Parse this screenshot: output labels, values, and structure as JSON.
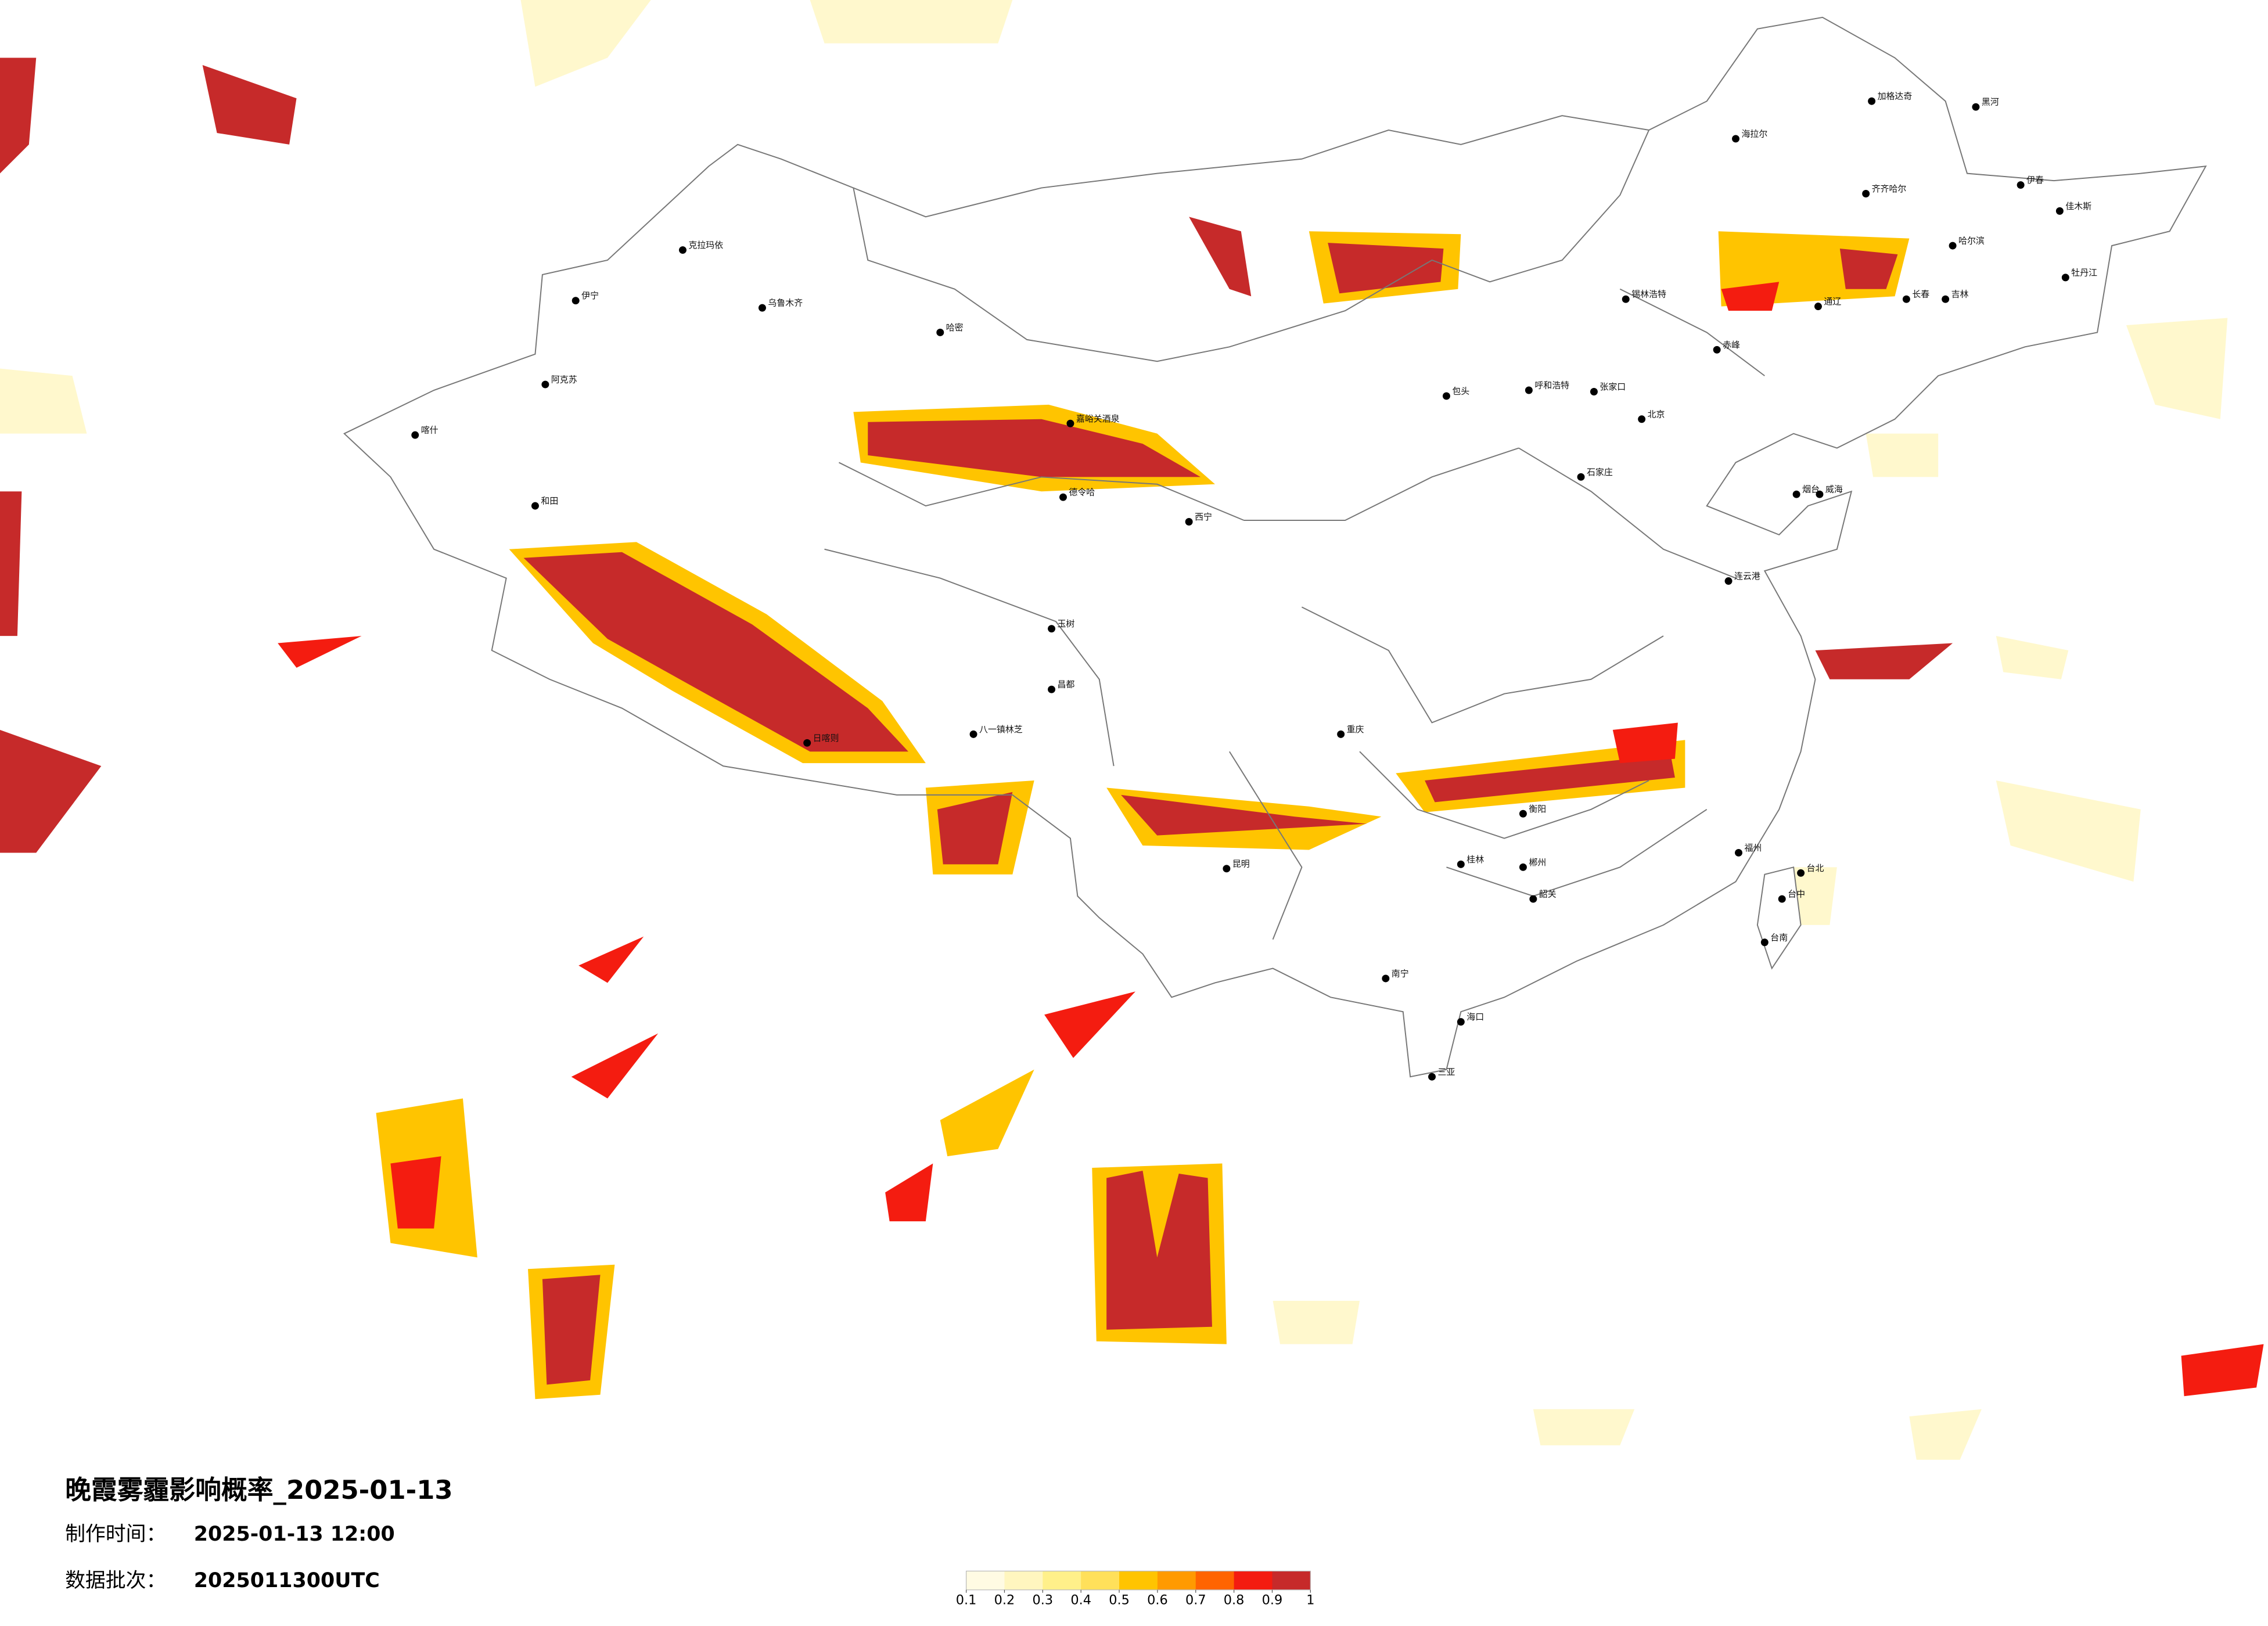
{
  "title": "晚霞雾霾影响概率_2025-01-13",
  "made_time": {
    "label": "制作时间：",
    "value": "2025-01-13 12:00"
  },
  "batch": {
    "label": "数据批次：",
    "value": "2025011300UTC"
  },
  "legend": {
    "colors": [
      "#fffbe3",
      "#fff6bf",
      "#fff08a",
      "#ffe05a",
      "#ffc400",
      "#ff9a00",
      "#ff6400",
      "#f41c10",
      "#c62a2a"
    ],
    "ticks": [
      0.1,
      0.2,
      0.3,
      0.4,
      0.5,
      0.6,
      0.7,
      0.8,
      0.9,
      1
    ]
  },
  "cities": [
    "加格达奇",
    "黑河",
    "海拉尔",
    "齐齐哈尔",
    "哈尔滨",
    "长春",
    "吉林",
    "伊春",
    "佳木斯",
    "牡丹江",
    "锡林浩特",
    "通辽",
    "赤峰",
    "张家口",
    "呼和浩特",
    "包头",
    "北京",
    "石家庄",
    "烟台",
    "威海",
    "连云港",
    "克拉玛依",
    "乌鲁木齐",
    "伊宁",
    "阿克苏",
    "喀什",
    "和田",
    "哈密",
    "嘉峪关酒泉",
    "德令哈",
    "西宁",
    "日喀则",
    "八一镇林芝",
    "昌都",
    "玉树",
    "重庆",
    "昆明",
    "南宁",
    "海口",
    "三亚",
    "台北",
    "台中",
    "台南",
    "福州",
    "衡阳",
    "郴州",
    "桂林",
    "韶关"
  ]
}
